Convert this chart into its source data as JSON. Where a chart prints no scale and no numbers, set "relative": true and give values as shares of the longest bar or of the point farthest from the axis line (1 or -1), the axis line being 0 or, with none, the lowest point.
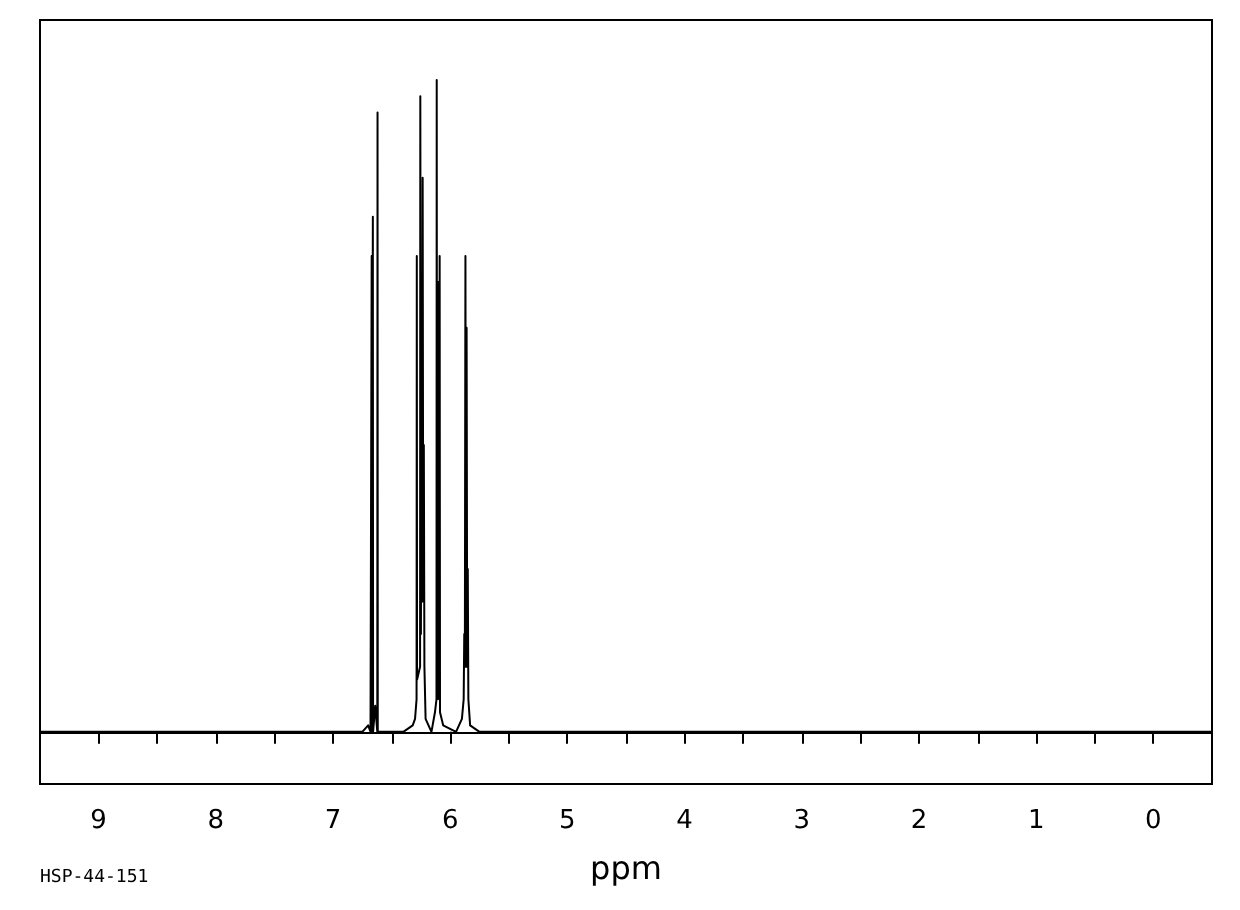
{
  "chart_data": {
    "type": "line",
    "relative": true,
    "xlabel": "ppm",
    "annotations": [
      "HSP-44-151"
    ],
    "xlim": [
      9.5,
      -0.5
    ],
    "xticks": [
      9,
      {
        "value": 8.5,
        "label": null
      },
      8,
      {
        "value": 7.5,
        "label": null
      },
      7,
      {
        "value": 6.5,
        "label": null
      },
      6,
      {
        "value": 5.5,
        "label": null
      },
      5,
      {
        "value": 4.5,
        "label": null
      },
      4,
      {
        "value": 3.5,
        "label": null
      },
      3,
      {
        "value": 2.5,
        "label": null
      },
      2,
      {
        "value": 1.5,
        "label": null
      },
      1,
      {
        "value": 0.5,
        "label": null
      },
      0
    ],
    "grid": false,
    "marker": "none",
    "line_style": "solid",
    "series": [
      {
        "color": "#000000",
        "x": [
          9.5,
          6.75,
          6.7,
          6.68,
          6.672,
          6.67,
          6.668,
          6.662,
          6.66,
          6.658,
          6.64,
          6.622,
          6.62,
          6.618,
          6.6,
          6.4,
          6.32,
          6.3,
          6.287,
          6.285,
          6.283,
          6.257,
          6.255,
          6.25,
          6.245,
          6.24,
          6.235,
          6.23,
          6.225,
          6.22,
          6.21,
          6.16,
          6.13,
          6.117,
          6.115,
          6.112,
          6.1,
          6.095,
          6.09,
          6.087,
          6.06,
          5.95,
          5.9,
          5.885,
          5.88,
          5.875,
          5.87,
          5.865,
          5.86,
          5.855,
          5.85,
          5.845,
          5.83,
          5.75,
          -0.5
        ],
        "values": [
          0,
          0,
          0.01,
          0,
          0,
          0.73,
          0,
          0,
          0.79,
          0,
          0.04,
          0,
          0.95,
          0,
          0,
          0,
          0.01,
          0.02,
          0.05,
          0.73,
          0.08,
          0.1,
          0.975,
          0.15,
          0.55,
          0.2,
          0.85,
          0.2,
          0.44,
          0.1,
          0.02,
          0,
          0.03,
          0.05,
          1,
          0.05,
          0.69,
          0.05,
          0.73,
          0.03,
          0.01,
          0,
          0.02,
          0.05,
          0.15,
          0.1,
          0.73,
          0.1,
          0.62,
          0.1,
          0.25,
          0.05,
          0.01,
          0,
          0
        ]
      }
    ]
  }
}
